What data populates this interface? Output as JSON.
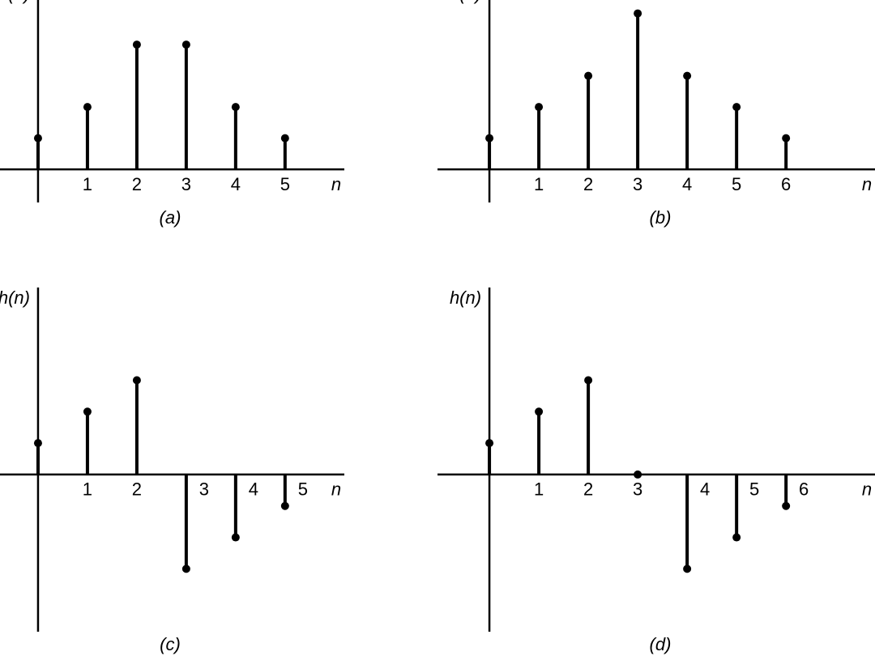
{
  "chart_data": [
    {
      "type": "stem",
      "caption": "(a)",
      "y_label": "h(n)",
      "x_label": "n",
      "x": [
        0,
        1,
        2,
        3,
        4,
        5
      ],
      "values": [
        1,
        2,
        4,
        4,
        2,
        1
      ],
      "xticks": [
        1,
        2,
        3,
        4,
        5
      ],
      "xlim": [
        -0.77,
        6.2
      ],
      "ylim": [
        -1.06,
        5.43
      ],
      "color": "#000000"
    },
    {
      "type": "stem",
      "caption": "(b)",
      "y_label": "h(n)",
      "x_label": "n",
      "x": [
        0,
        1,
        2,
        3,
        4,
        5,
        6
      ],
      "values": [
        1,
        2,
        3,
        5,
        3,
        2,
        1
      ],
      "xticks": [
        1,
        2,
        3,
        4,
        5,
        6
      ],
      "xlim": [
        -1.05,
        7.8
      ],
      "ylim": [
        -1.06,
        5.43
      ],
      "color": "#000000"
    },
    {
      "type": "stem",
      "caption": "(c)",
      "y_label": "h(n)",
      "x_label": "n",
      "x": [
        0,
        1,
        2,
        3,
        4,
        5
      ],
      "values": [
        1,
        2,
        3,
        -3,
        -2,
        -1
      ],
      "xticks": [
        1,
        2,
        3,
        4,
        5
      ],
      "xlim": [
        -0.77,
        6.2
      ],
      "ylim": [
        -5,
        5.95
      ],
      "color": "#000000"
    },
    {
      "type": "stem",
      "caption": "(d)",
      "y_label": "h(n)",
      "x_label": "n",
      "x": [
        0,
        1,
        2,
        3,
        4,
        5,
        6
      ],
      "values": [
        1,
        2,
        3,
        0,
        -3,
        -2,
        -1
      ],
      "xticks": [
        1,
        2,
        3,
        4,
        5,
        6
      ],
      "xlim": [
        -1.05,
        7.8
      ],
      "ylim": [
        -5,
        5.95
      ],
      "color": "#000000"
    }
  ]
}
